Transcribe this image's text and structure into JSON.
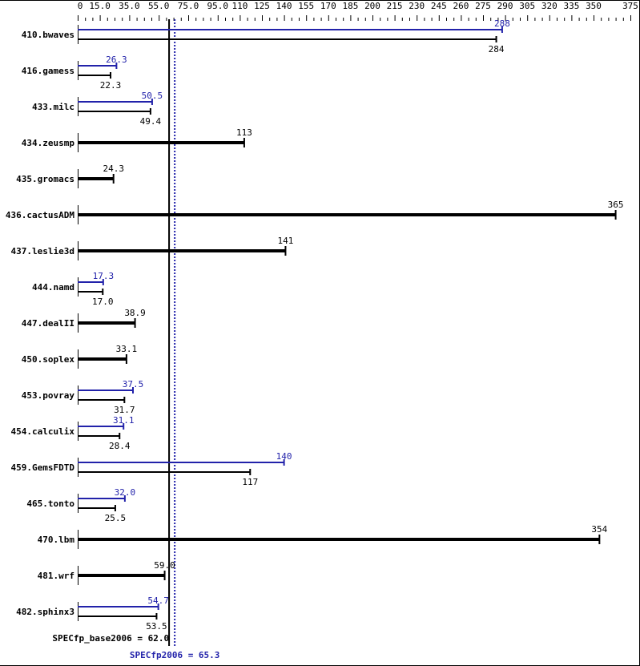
{
  "chart_data": {
    "type": "bar",
    "orientation": "horizontal",
    "xlim": [
      0,
      375
    ],
    "x_tick_labels": [
      "0",
      "15.0",
      "35.0",
      "55.0",
      "75.0",
      "95.0",
      "110",
      "125",
      "140",
      "155",
      "170",
      "185",
      "200",
      "215",
      "230",
      "245",
      "260",
      "275",
      "290",
      "305",
      "320",
      "335",
      "350",
      "375"
    ],
    "x_tick_values": [
      0,
      15,
      35,
      55,
      75,
      95,
      110,
      125,
      140,
      155,
      170,
      185,
      200,
      215,
      230,
      245,
      260,
      275,
      290,
      305,
      320,
      335,
      350,
      375
    ],
    "colors": {
      "base": "#000000",
      "peak": "#2222aa"
    },
    "categories": [
      "410.bwaves",
      "416.gamess",
      "433.milc",
      "434.zeusmp",
      "435.gromacs",
      "436.cactusADM",
      "437.leslie3d",
      "444.namd",
      "447.dealII",
      "450.soplex",
      "453.povray",
      "454.calculix",
      "459.GemsFDTD",
      "465.tonto",
      "470.lbm",
      "481.wrf",
      "482.sphinx3"
    ],
    "series": [
      {
        "name": "base",
        "values": [
          284,
          22.3,
          49.4,
          113,
          24.3,
          365,
          141,
          17.0,
          38.9,
          33.1,
          31.7,
          28.4,
          117,
          25.5,
          354,
          59.0,
          53.5
        ],
        "labels": [
          "284",
          "22.3",
          "49.4",
          "113",
          "24.3",
          "365",
          "141",
          "17.0",
          "38.9",
          "33.1",
          "31.7",
          "28.4",
          "117",
          "25.5",
          "354",
          "59.0",
          "53.5"
        ]
      },
      {
        "name": "peak",
        "values": [
          288,
          26.3,
          50.5,
          null,
          null,
          null,
          null,
          17.3,
          null,
          null,
          37.5,
          31.1,
          140,
          32.0,
          null,
          null,
          54.7
        ],
        "labels": [
          "288",
          "26.3",
          "50.5",
          null,
          null,
          null,
          null,
          "17.3",
          null,
          null,
          "37.5",
          "31.1",
          "140",
          "32.0",
          null,
          null,
          "54.7"
        ]
      }
    ],
    "reference_lines": [
      {
        "label": "SPECfp_base2006 = 62.0",
        "value": 62.0,
        "style": "solid",
        "color": "#000000"
      },
      {
        "label": "SPECfp2006 = 65.3",
        "value": 65.3,
        "style": "dotted",
        "color": "#2222aa"
      }
    ]
  }
}
